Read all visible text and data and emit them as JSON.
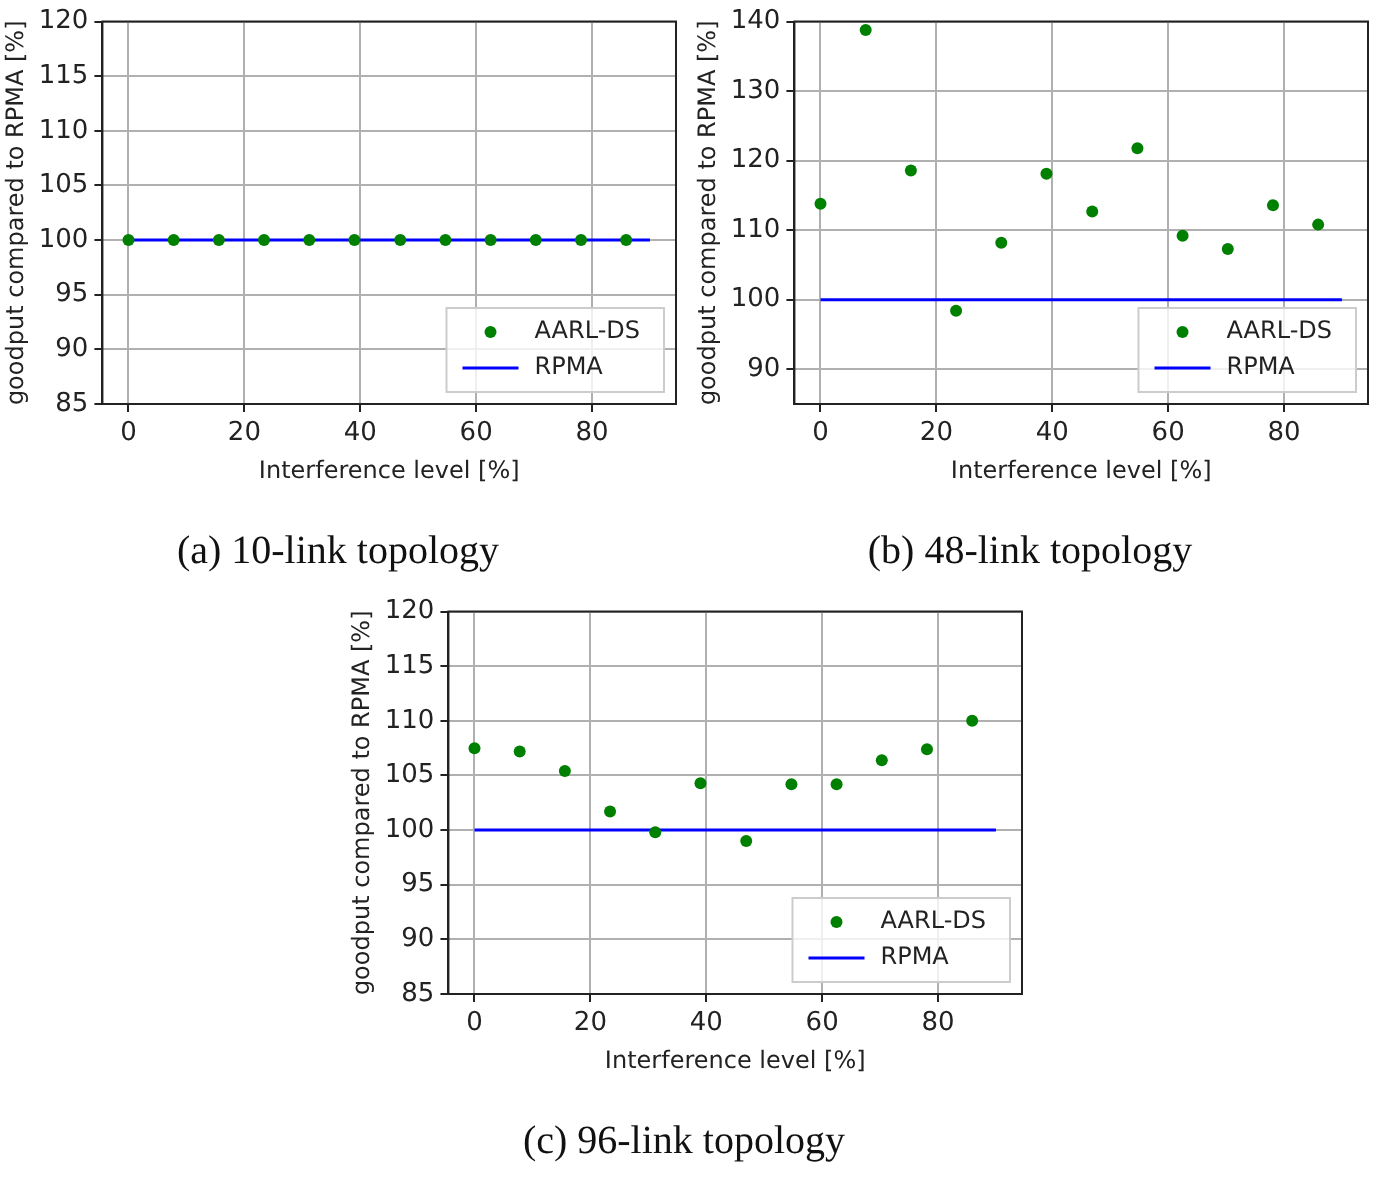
{
  "chart_data": [
    {
      "type": "scatter",
      "title": "(a) 10-link topology",
      "xlabel": "Interference level [%]",
      "ylabel": "goodput compared to RPMA [%]",
      "xlim": [
        -4.5,
        94.5
      ],
      "xticks": [
        0,
        20,
        40,
        60,
        80
      ],
      "ylim": [
        85,
        120
      ],
      "yticks": [
        85,
        90,
        95,
        100,
        105,
        110,
        115,
        120
      ],
      "grid": true,
      "legend": "bottom right",
      "series": [
        {
          "name": "AARL-DS",
          "type": "scatter",
          "marker": "circle",
          "color": "#008000",
          "x": [
            0,
            7.8,
            15.6,
            23.4,
            31.2,
            39,
            46.9,
            54.7,
            62.5,
            70.3,
            78.1,
            85.9
          ],
          "values": [
            100,
            100,
            100,
            100,
            100,
            100,
            100,
            100,
            100,
            100,
            100,
            100
          ]
        },
        {
          "name": "RPMA",
          "type": "line",
          "marker": "none",
          "color": "#0000ff",
          "x": [
            0,
            90
          ],
          "values": [
            100,
            100
          ]
        }
      ]
    },
    {
      "type": "scatter",
      "title": "(b) 48-link topology",
      "xlabel": "Interference level [%]",
      "ylabel": "goodput compared to RPMA [%]",
      "xlim": [
        -4.5,
        94.5
      ],
      "xticks": [
        0,
        20,
        40,
        60,
        80
      ],
      "ylim": [
        85,
        140
      ],
      "yticks": [
        90,
        100,
        110,
        120,
        130,
        140
      ],
      "grid": true,
      "legend": "bottom right",
      "series": [
        {
          "name": "AARL-DS",
          "type": "scatter",
          "marker": "circle",
          "color": "#008000",
          "x": [
            0,
            7.8,
            15.6,
            23.4,
            31.2,
            39,
            46.9,
            54.7,
            62.5,
            70.3,
            78.1,
            85.9
          ],
          "values": [
            113.8,
            138.8,
            118.6,
            98.4,
            108.2,
            118.1,
            112.7,
            121.8,
            109.2,
            107.3,
            113.6,
            110.8
          ]
        },
        {
          "name": "RPMA",
          "type": "line",
          "marker": "none",
          "color": "#0000ff",
          "x": [
            0,
            90
          ],
          "values": [
            100,
            100
          ]
        }
      ]
    },
    {
      "type": "scatter",
      "title": "(c) 96-link topology",
      "xlabel": "Interference level [%]",
      "ylabel": "goodput compared to RPMA [%]",
      "xlim": [
        -4.5,
        94.5
      ],
      "xticks": [
        0,
        20,
        40,
        60,
        80
      ],
      "ylim": [
        85,
        120
      ],
      "yticks": [
        85,
        90,
        95,
        100,
        105,
        110,
        115,
        120
      ],
      "grid": true,
      "legend": "bottom right",
      "series": [
        {
          "name": "AARL-DS",
          "type": "scatter",
          "marker": "circle",
          "color": "#008000",
          "x": [
            0,
            7.8,
            15.6,
            23.4,
            31.2,
            39,
            46.9,
            54.7,
            62.5,
            70.3,
            78.1,
            85.9
          ],
          "values": [
            107.5,
            107.2,
            105.4,
            101.7,
            99.8,
            104.3,
            99.0,
            104.2,
            104.2,
            106.4,
            107.4,
            110.0
          ]
        },
        {
          "name": "RPMA",
          "type": "line",
          "marker": "none",
          "color": "#0000ff",
          "x": [
            0,
            90
          ],
          "values": [
            100,
            100
          ]
        }
      ]
    }
  ]
}
